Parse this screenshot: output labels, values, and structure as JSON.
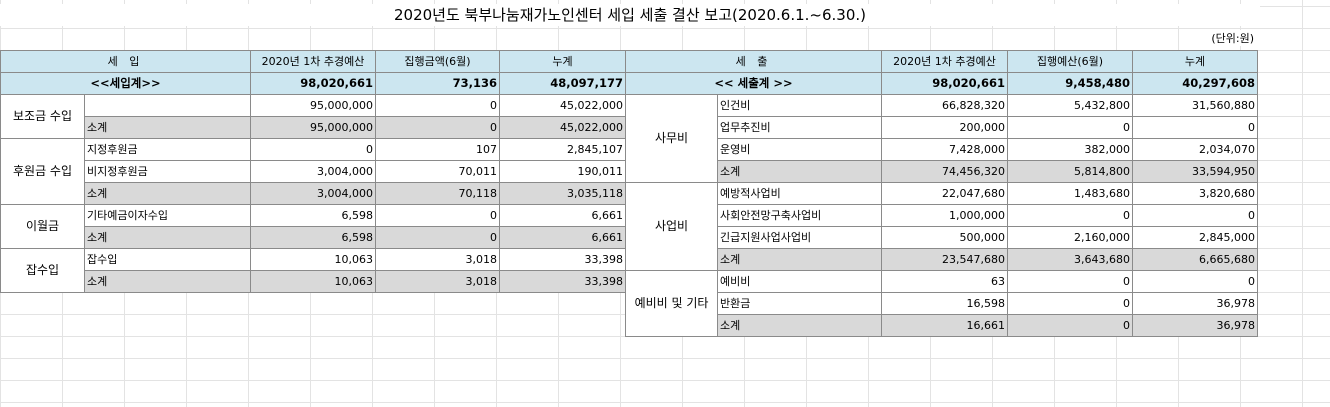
{
  "title": "2020년도 북부나눔재가노인센터 세입 세출 결산 보고(2020.6.1.~6.30.)",
  "unit": "(단위:원)",
  "income": {
    "headers": [
      "세 입",
      "2020년 1차 추경예산",
      "집행금액(6월)",
      "누계"
    ],
    "total": {
      "label": "<<세입계>>",
      "budget": "98,020,661",
      "month": "73,136",
      "cum": "48,097,177"
    },
    "groups": [
      {
        "category": "보조금 수입",
        "rows": [
          {
            "item": "",
            "budget": "95,000,000",
            "month": "0",
            "cum": "45,022,000",
            "sub": false
          },
          {
            "item": "소계",
            "budget": "95,000,000",
            "month": "0",
            "cum": "45,022,000",
            "sub": true
          }
        ]
      },
      {
        "category": "후원금 수입",
        "rows": [
          {
            "item": "지정후원금",
            "budget": "0",
            "month": "107",
            "cum": "2,845,107",
            "sub": false
          },
          {
            "item": "비지정후원금",
            "budget": "3,004,000",
            "month": "70,011",
            "cum": "190,011",
            "sub": false
          },
          {
            "item": "소계",
            "budget": "3,004,000",
            "month": "70,118",
            "cum": "3,035,118",
            "sub": true
          }
        ]
      },
      {
        "category": "이월금",
        "rows": [
          {
            "item": "기타예금이자수입",
            "budget": "6,598",
            "month": "0",
            "cum": "6,661",
            "sub": false
          },
          {
            "item": "소계",
            "budget": "6,598",
            "month": "0",
            "cum": "6,661",
            "sub": true
          }
        ]
      },
      {
        "category": "잡수입",
        "rows": [
          {
            "item": "잡수입",
            "budget": "10,063",
            "month": "3,018",
            "cum": "33,398",
            "sub": false
          },
          {
            "item": "소계",
            "budget": "10,063",
            "month": "3,018",
            "cum": "33,398",
            "sub": true
          }
        ]
      }
    ]
  },
  "expense": {
    "headers": [
      "세 출",
      "2020년 1차 추경예산",
      "집행예산(6월)",
      "누계"
    ],
    "total": {
      "label": "<< 세출계 >>",
      "budget": "98,020,661",
      "month": "9,458,480",
      "cum": "40,297,608"
    },
    "groups": [
      {
        "category": "사무비",
        "rows": [
          {
            "item": "인건비",
            "budget": "66,828,320",
            "month": "5,432,800",
            "cum": "31,560,880",
            "sub": false
          },
          {
            "item": "업무추진비",
            "budget": "200,000",
            "month": "0",
            "cum": "0",
            "sub": false
          },
          {
            "item": "운영비",
            "budget": "7,428,000",
            "month": "382,000",
            "cum": "2,034,070",
            "sub": false
          },
          {
            "item": "소계",
            "budget": "74,456,320",
            "month": "5,814,800",
            "cum": "33,594,950",
            "sub": true
          }
        ]
      },
      {
        "category": "사업비",
        "rows": [
          {
            "item": "예방적사업비",
            "budget": "22,047,680",
            "month": "1,483,680",
            "cum": "3,820,680",
            "sub": false
          },
          {
            "item": "사회안전망구축사업비",
            "budget": "1,000,000",
            "month": "0",
            "cum": "0",
            "sub": false
          },
          {
            "item": "긴급지원사업사업비",
            "budget": "500,000",
            "month": "2,160,000",
            "cum": "2,845,000",
            "sub": false
          },
          {
            "item": "소계",
            "budget": "23,547,680",
            "month": "3,643,680",
            "cum": "6,665,680",
            "sub": true
          }
        ]
      },
      {
        "category": "예비비 및 기타",
        "rows": [
          {
            "item": "예비비",
            "budget": "63",
            "month": "0",
            "cum": "0",
            "sub": false
          },
          {
            "item": "반환금",
            "budget": "16,598",
            "month": "0",
            "cum": "36,978",
            "sub": false
          },
          {
            "item": "소계",
            "budget": "16,661",
            "month": "0",
            "cum": "36,978",
            "sub": true
          }
        ]
      }
    ]
  },
  "colors": {
    "header": "#cce6f0",
    "subtotal": "#d9d9d9",
    "border": "#8a8a8a"
  }
}
